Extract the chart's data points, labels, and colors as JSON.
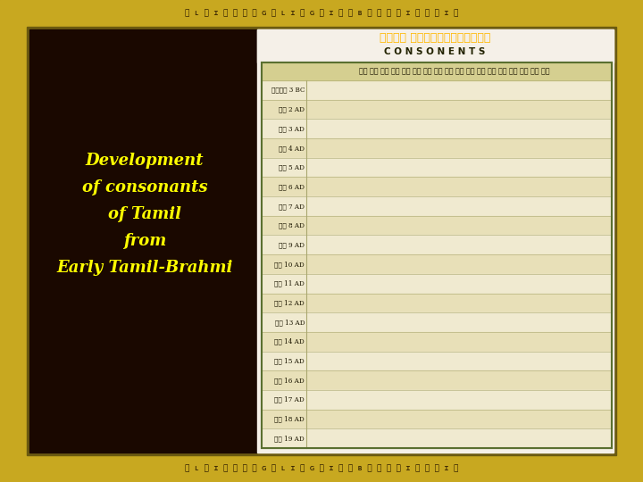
{
  "figsize": [
    7.2,
    5.4
  ],
  "dpi": 100,
  "outer_bg": "#8B7535",
  "border_color": "#c8a820",
  "left_panel_bg": "#1a0800",
  "right_panel_bg": "#f5f0e8",
  "table_bg_even": "#f0ead0",
  "table_bg_odd": "#e8e0b8",
  "table_border": "#5a7030",
  "table_line": "#aaa870",
  "text_color_yellow": "#FFFF00",
  "text_color_dark": "#1a1500",
  "left_text": [
    "Development",
    "of consonants",
    "of Tamil",
    "from",
    "Early Tamil-Brahmi"
  ],
  "row_labels_en": [
    "3 BC",
    "2 AD",
    "3 AD",
    "4 AD",
    "5 AD",
    "6 AD",
    "7 AD",
    "8 AD",
    "9 AD",
    "10 AD",
    "11 AD",
    "12 AD",
    "13 AD",
    "14 AD",
    "15 AD",
    "16 AD",
    "17 AD",
    "18 AD",
    "19 AD"
  ],
  "title_eng": "C O N S O N E N T S"
}
